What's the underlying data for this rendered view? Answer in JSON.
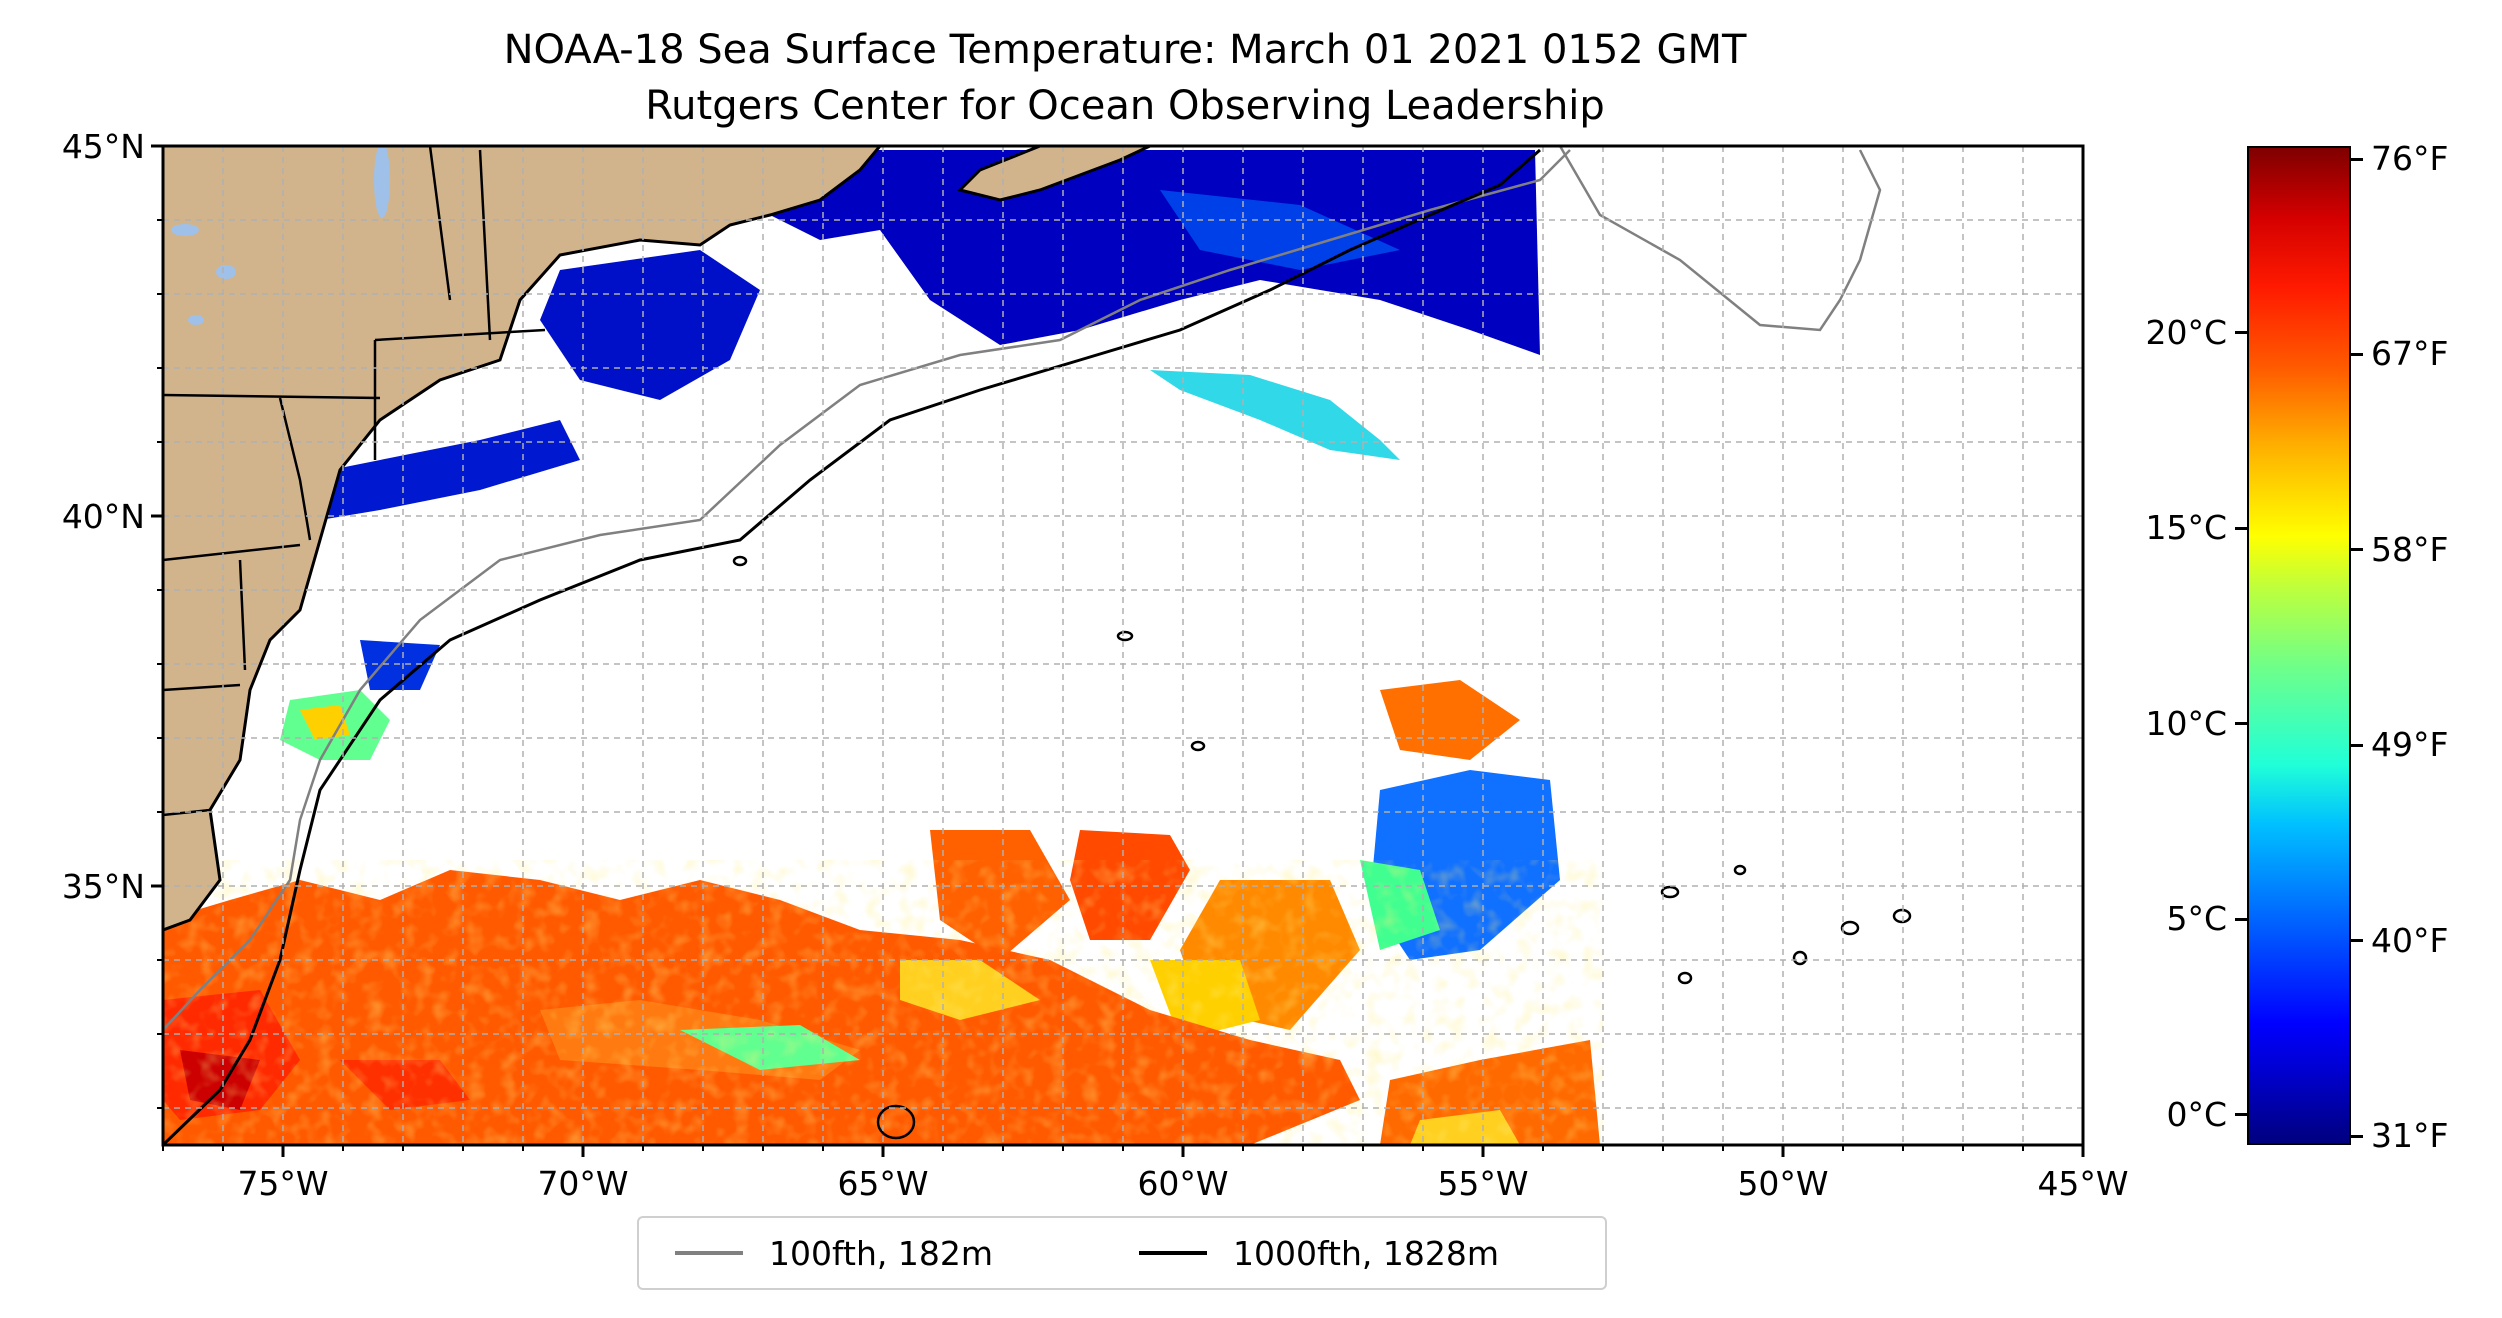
{
  "title": {
    "line1": "NOAA-18 Sea Surface Temperature: March 01 2021 0152 GMT",
    "line2": "Rutgers Center for Ocean Observing Leadership"
  },
  "map": {
    "lon_range": [
      -77,
      -45
    ],
    "lat_range": [
      31.5,
      45
    ],
    "lon_ticks": [
      -75,
      -70,
      -65,
      -60,
      -55,
      -50,
      -45
    ],
    "lon_labels": [
      "75°W",
      "70°W",
      "65°W",
      "60°W",
      "55°W",
      "50°W",
      "45°W"
    ],
    "lat_ticks": [
      35,
      40,
      45
    ],
    "lat_labels": [
      "35°N",
      "40°N",
      "45°N"
    ],
    "gridlines": "dashed",
    "colors": {
      "land": "#d2b48c",
      "lakes": "#9fc0e8",
      "ocean_nodata": "#ffffff",
      "isobath_100": "#808080",
      "isobath_1000": "#000000"
    }
  },
  "legend": {
    "items": [
      {
        "label": "100fth, 182m",
        "color": "#808080"
      },
      {
        "label": "1000fth, 1828m",
        "color": "#000000"
      }
    ]
  },
  "colorbar": {
    "colormap": "jet",
    "celsius_ticks": [
      {
        "value": 0,
        "label": "0°C"
      },
      {
        "value": 5,
        "label": "5°C"
      },
      {
        "value": 10,
        "label": "10°C"
      },
      {
        "value": 15,
        "label": "15°C"
      },
      {
        "value": 20,
        "label": "20°C"
      }
    ],
    "fahrenheit_ticks": [
      {
        "value": 31,
        "label": "31°F"
      },
      {
        "value": 40,
        "label": "40°F"
      },
      {
        "value": 49,
        "label": "49°F"
      },
      {
        "value": 58,
        "label": "58°F"
      },
      {
        "value": 67,
        "label": "67°F"
      },
      {
        "value": 76,
        "label": "76°F"
      }
    ]
  }
}
